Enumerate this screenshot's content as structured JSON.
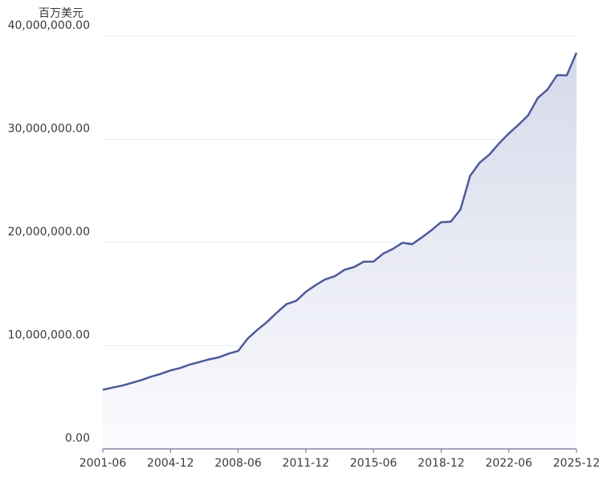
{
  "chart_data": {
    "type": "area",
    "y_unit": "百万美元",
    "x": [
      "2001-06",
      "2001-12",
      "2002-06",
      "2002-12",
      "2003-06",
      "2003-12",
      "2004-06",
      "2004-12",
      "2005-06",
      "2005-12",
      "2006-06",
      "2006-12",
      "2007-06",
      "2007-12",
      "2008-06",
      "2008-12",
      "2009-06",
      "2009-12",
      "2010-06",
      "2010-12",
      "2011-06",
      "2011-12",
      "2012-06",
      "2012-12",
      "2013-06",
      "2013-12",
      "2014-06",
      "2014-12",
      "2015-06",
      "2015-12",
      "2016-06",
      "2016-12",
      "2017-06",
      "2017-12",
      "2018-06",
      "2018-12",
      "2019-06",
      "2019-12",
      "2020-06",
      "2020-12",
      "2021-06",
      "2021-12",
      "2022-06",
      "2022-12",
      "2023-06",
      "2023-12",
      "2024-06",
      "2024-12",
      "2025-06",
      "2025-12"
    ],
    "values": [
      5730000,
      5940000,
      6130000,
      6400000,
      6670000,
      7000000,
      7270000,
      7600000,
      7840000,
      8170000,
      8420000,
      8680000,
      8870000,
      9230000,
      9490000,
      10700000,
      11550000,
      12310000,
      13200000,
      14030000,
      14340000,
      15220000,
      15860000,
      16430000,
      16740000,
      17350000,
      17630000,
      18140000,
      18150000,
      18920000,
      19380000,
      19980000,
      19840000,
      20490000,
      21200000,
      21970000,
      22020000,
      23200000,
      26480000,
      27750000,
      28530000,
      29620000,
      30570000,
      31420000,
      32330000,
      34000000,
      34830000,
      36220000,
      36210000,
      38400000
    ],
    "color": "#4c5a9a",
    "xticks": [
      "2001-06",
      "2004-12",
      "2008-06",
      "2011-12",
      "2015-06",
      "2018-12",
      "2022-06",
      "2025-12"
    ],
    "ylim": [
      0,
      40000000
    ],
    "yticks": [
      {
        "value": 0,
        "label": "0.00"
      },
      {
        "value": 10000000,
        "label": "10,000,000.00"
      },
      {
        "value": 20000000,
        "label": "20,000,000.00"
      },
      {
        "value": 30000000,
        "label": "30,000,000.00"
      },
      {
        "value": 40000000,
        "label": "40,000,000.00"
      }
    ],
    "grid": true
  }
}
